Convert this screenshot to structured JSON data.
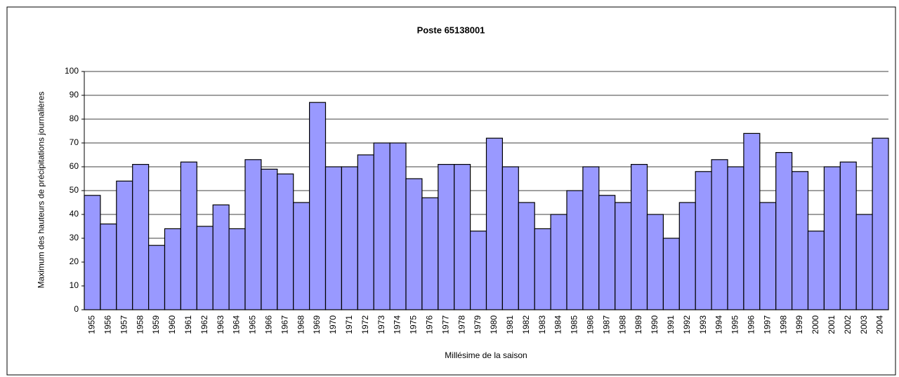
{
  "chart_data": {
    "type": "bar",
    "title": "Poste 65138001",
    "x_label": "Millésime de la saison",
    "y_label": "Maximum des hauteurs de précipitations journalières",
    "categories": [
      "1955",
      "1956",
      "1957",
      "1958",
      "1959",
      "1960",
      "1961",
      "1962",
      "1963",
      "1964",
      "1965",
      "1966",
      "1967",
      "1968",
      "1969",
      "1970",
      "1971",
      "1972",
      "1973",
      "1974",
      "1975",
      "1976",
      "1977",
      "1978",
      "1979",
      "1980",
      "1981",
      "1982",
      "1983",
      "1984",
      "1985",
      "1986",
      "1987",
      "1988",
      "1989",
      "1990",
      "1991",
      "1992",
      "1993",
      "1994",
      "1995",
      "1996",
      "1997",
      "1998",
      "1999",
      "2000",
      "2001",
      "2002",
      "2003",
      "2004"
    ],
    "values": [
      48,
      36,
      54,
      61,
      27,
      34,
      62,
      35,
      44,
      34,
      63,
      59,
      57,
      45,
      87,
      60,
      60,
      65,
      70,
      70,
      55,
      47,
      61,
      61,
      33,
      72,
      60,
      45,
      34,
      40,
      50,
      60,
      48,
      45,
      61,
      40,
      30,
      45,
      58,
      63,
      60,
      74,
      45,
      66,
      58,
      33,
      60,
      62,
      40,
      72
    ],
    "color": "#9999ff",
    "ylim": [
      0,
      100
    ],
    "yticks": [
      0,
      10,
      20,
      30,
      40,
      50,
      60,
      70,
      80,
      90,
      100
    ],
    "grid": true
  }
}
